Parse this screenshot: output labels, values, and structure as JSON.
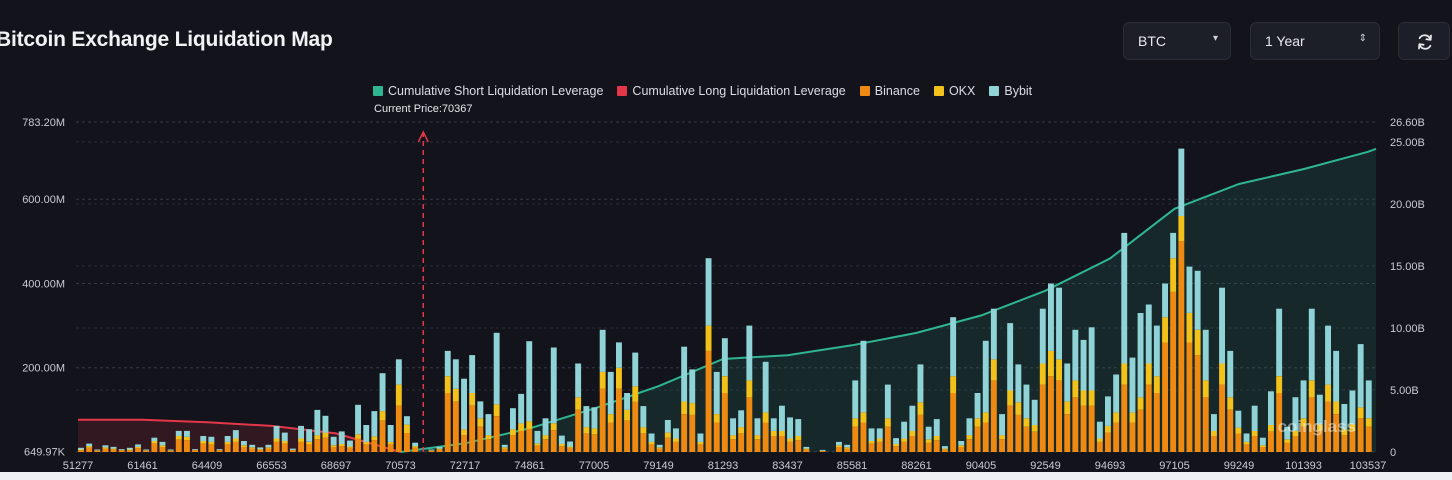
{
  "header": {
    "title": "Bitcoin Exchange Liquidation Map",
    "asset_select": "BTC",
    "range_select": "1 Year",
    "refresh_icon": "refresh-icon"
  },
  "colors": {
    "short_cum": "#2fb592",
    "long_cum": "#e4374a",
    "binance": "#ee8a12",
    "okx": "#f2c21b",
    "bybit": "#8fd3d6",
    "grid": "#343744",
    "text": "#c9cad1"
  },
  "chart_data": {
    "type": "bar",
    "title": "Bitcoin Exchange Liquidation Map",
    "current_price_label": "Current Price:70367",
    "current_price": 70367,
    "watermark": "coinglass",
    "legend": [
      "Cumulative Short Liquidation Leverage",
      "Cumulative Long Liquidation Leverage",
      "Binance",
      "OKX",
      "Bybit"
    ],
    "x_ticks": [
      "51277",
      "61461",
      "64409",
      "66553",
      "68697",
      "70573",
      "72717",
      "74861",
      "77005",
      "79149",
      "81293",
      "83437",
      "85581",
      "88261",
      "90405",
      "92549",
      "94693",
      "97105",
      "99249",
      "101393",
      "103537"
    ],
    "y_left": {
      "ticks": [
        "649.97K",
        "200.00M",
        "400.00M",
        "600.00M",
        "783.20M"
      ],
      "tick_values": [
        0.65,
        200,
        400,
        600,
        783.2
      ],
      "range": [
        0,
        783.2
      ],
      "unit": "M"
    },
    "y_right": {
      "ticks": [
        "0",
        "5.00B",
        "10.00B",
        "15.00B",
        "20.00B",
        "25.00B",
        "26.60B"
      ],
      "tick_values": [
        0,
        5,
        10,
        15,
        20,
        25,
        26.6
      ],
      "range": [
        0,
        26.6
      ],
      "unit": "B"
    },
    "current_price_bar_index": 42,
    "series": [
      {
        "name": "Binance",
        "values": [
          4,
          10,
          3,
          8,
          6,
          4,
          4,
          9,
          3,
          20,
          12,
          3,
          30,
          28,
          4,
          20,
          18,
          4,
          18,
          24,
          12,
          8,
          5,
          8,
          24,
          20,
          4,
          24,
          18,
          30,
          34,
          12,
          14,
          10,
          32,
          18,
          28,
          75,
          18,
          110,
          45,
          10,
          0,
          3,
          6,
          140,
          120,
          40,
          110,
          60,
          30,
          85,
          8,
          40,
          50,
          55,
          15,
          30,
          52,
          14,
          10,
          100,
          44,
          42,
          150,
          70,
          150,
          75,
          120,
          44,
          18,
          8,
          34,
          24,
          90,
          88,
          18,
          240,
          70,
          140,
          30,
          44,
          130,
          30,
          70,
          38,
          38,
          24,
          28,
          6,
          0,
          2,
          0,
          12,
          8,
          60,
          70,
          20,
          24,
          60,
          14,
          24,
          38,
          88,
          22,
          28,
          6,
          140,
          12,
          30,
          60,
          70,
          170,
          30,
          110,
          88,
          60,
          48,
          160,
          180,
          170,
          90,
          130,
          110,
          110,
          24,
          46,
          70,
          160,
          70,
          100,
          160,
          140,
          260,
          380,
          500,
          260,
          230,
          130,
          38,
          160,
          100,
          44,
          18,
          38,
          12,
          48,
          140,
          22,
          38,
          60,
          130,
          50,
          120,
          90,
          40,
          50,
          80,
          60
        ],
        "notes": "Binance bar segments, values in millions"
      },
      {
        "name": "OKX",
        "values": [
          2,
          4,
          1,
          3,
          2,
          1,
          2,
          3,
          1,
          6,
          4,
          1,
          8,
          8,
          1,
          6,
          6,
          1,
          6,
          8,
          4,
          3,
          2,
          3,
          8,
          6,
          1,
          8,
          6,
          10,
          12,
          4,
          5,
          3,
          10,
          6,
          9,
          22,
          6,
          50,
          20,
          4,
          0,
          1,
          2,
          40,
          30,
          14,
          30,
          20,
          10,
          28,
          3,
          14,
          18,
          18,
          5,
          10,
          16,
          5,
          3,
          30,
          15,
          14,
          40,
          20,
          50,
          25,
          36,
          15,
          6,
          3,
          12,
          8,
          30,
          28,
          6,
          60,
          20,
          40,
          10,
          15,
          40,
          10,
          24,
          12,
          12,
          8,
          10,
          2,
          0,
          1,
          0,
          4,
          3,
          20,
          24,
          6,
          8,
          20,
          5,
          8,
          12,
          30,
          8,
          10,
          2,
          40,
          4,
          10,
          20,
          24,
          50,
          10,
          36,
          30,
          20,
          16,
          50,
          60,
          50,
          30,
          40,
          36,
          36,
          8,
          16,
          24,
          50,
          24,
          30,
          50,
          40,
          60,
          80,
          60,
          70,
          60,
          40,
          12,
          50,
          30,
          14,
          6,
          12,
          4,
          16,
          40,
          8,
          12,
          20,
          40,
          16,
          40,
          30,
          14,
          16,
          26,
          20
        ]
      },
      {
        "name": "Bybit",
        "values": [
          4,
          6,
          2,
          5,
          4,
          2,
          4,
          6,
          2,
          8,
          8,
          2,
          12,
          14,
          2,
          12,
          12,
          2,
          14,
          20,
          10,
          6,
          4,
          6,
          30,
          20,
          3,
          30,
          30,
          60,
          40,
          20,
          30,
          14,
          70,
          40,
          60,
          90,
          40,
          60,
          20,
          8,
          0,
          2,
          4,
          60,
          70,
          120,
          90,
          40,
          50,
          170,
          6,
          50,
          70,
          190,
          30,
          40,
          180,
          20,
          12,
          80,
          50,
          50,
          100,
          100,
          60,
          40,
          80,
          50,
          20,
          6,
          30,
          24,
          130,
          80,
          20,
          160,
          100,
          90,
          40,
          40,
          130,
          40,
          120,
          30,
          60,
          50,
          40,
          4,
          0,
          2,
          0,
          8,
          6,
          90,
          170,
          30,
          24,
          80,
          14,
          40,
          60,
          90,
          30,
          40,
          6,
          140,
          10,
          40,
          60,
          170,
          120,
          50,
          160,
          90,
          80,
          60,
          130,
          160,
          170,
          90,
          120,
          120,
          150,
          40,
          70,
          90,
          310,
          130,
          200,
          140,
          120,
          80,
          60,
          160,
          110,
          140,
          120,
          40,
          180,
          110,
          40,
          20,
          60,
          18,
          80,
          160,
          30,
          80,
          90,
          170,
          70,
          140,
          120,
          60,
          80,
          150,
          90
        ]
      },
      {
        "name": "Cumulative Short Liquidation Leverage",
        "x": [
          "70573",
          "72717",
          "74861",
          "77005",
          "79149",
          "81293",
          "83437",
          "85581",
          "88261",
          "90405",
          "92549",
          "94693",
          "97105",
          "99249",
          "101393",
          "103537"
        ],
        "values": [
          0.0,
          0.7,
          1.9,
          3.5,
          5.3,
          7.5,
          7.8,
          8.6,
          9.6,
          11.0,
          13.0,
          15.6,
          19.6,
          21.6,
          22.8,
          24.2
        ]
      },
      {
        "name": "Cumulative Long Liquidation Leverage",
        "x": [
          "51277",
          "61461",
          "64409",
          "66553",
          "68697",
          "70573"
        ],
        "values": [
          2.6,
          2.6,
          2.4,
          2.1,
          1.5,
          0.0
        ]
      }
    ]
  }
}
